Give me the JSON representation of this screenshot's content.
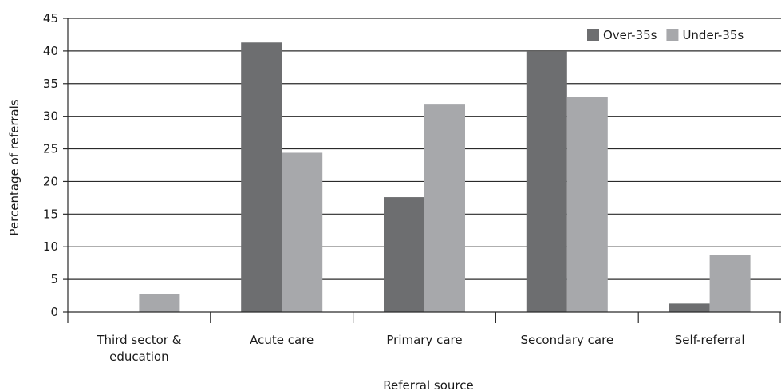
{
  "chart_data": {
    "type": "bar",
    "title": "",
    "xlabel": "Referral source",
    "ylabel": "Percentage of referrals",
    "ylim": [
      0,
      45
    ],
    "yticks": [
      0,
      5,
      10,
      15,
      20,
      25,
      30,
      35,
      40,
      45
    ],
    "grid": "horizontal",
    "legend_position": "top-right",
    "categories": [
      [
        "Third sector &",
        "education"
      ],
      [
        "Acute care"
      ],
      [
        "Primary care"
      ],
      [
        "Secondary care"
      ],
      [
        "Self-referral"
      ]
    ],
    "series": [
      {
        "name": "Over-35s",
        "color": "#6d6e70",
        "values": [
          0,
          41.3,
          17.6,
          39.9,
          1.3
        ]
      },
      {
        "name": "Under-35s",
        "color": "#a7a8ab",
        "values": [
          2.7,
          24.4,
          31.9,
          32.9,
          8.7
        ]
      }
    ]
  }
}
